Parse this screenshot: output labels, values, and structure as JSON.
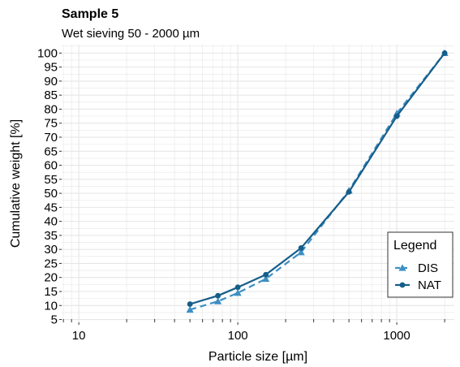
{
  "chart_data": {
    "type": "line",
    "title": "Sample 5",
    "subtitle": "Wet sieving 50 - 2000 µm",
    "xlabel": "Particle size [µm]",
    "ylabel": "Cumulative weight [%]",
    "x_scale": "log10",
    "xlim": [
      7.8,
      2300
    ],
    "ylim": [
      4,
      103
    ],
    "x_ticks": [
      10,
      100,
      1000
    ],
    "x_tick_labels": [
      "10",
      "100",
      "1000"
    ],
    "y_ticks": [
      5,
      10,
      15,
      20,
      25,
      30,
      35,
      40,
      45,
      50,
      55,
      60,
      65,
      70,
      75,
      80,
      85,
      90,
      95,
      100
    ],
    "y_tick_labels": [
      "5",
      "10",
      "15",
      "20",
      "25",
      "30",
      "35",
      "40",
      "45",
      "50",
      "55",
      "60",
      "65",
      "70",
      "75",
      "80",
      "85",
      "90",
      "95",
      "100"
    ],
    "grid": true,
    "legend": {
      "title": "Legend",
      "position": "bottom-right"
    },
    "series": [
      {
        "name": "DIS",
        "color": "#3d8fc4",
        "line_style": "dashed",
        "marker": "triangle",
        "x": [
          50,
          75,
          100,
          150,
          250,
          500,
          1000,
          2000
        ],
        "y": [
          8.5,
          11.5,
          14.5,
          19.5,
          29,
          51,
          78.5,
          100
        ]
      },
      {
        "name": "NAT",
        "color": "#165e8a",
        "line_style": "solid",
        "marker": "circle",
        "x": [
          50,
          75,
          100,
          150,
          250,
          500,
          1000,
          2000
        ],
        "y": [
          10.5,
          13.5,
          16.5,
          21,
          30.5,
          50.5,
          77.5,
          100
        ]
      }
    ]
  }
}
